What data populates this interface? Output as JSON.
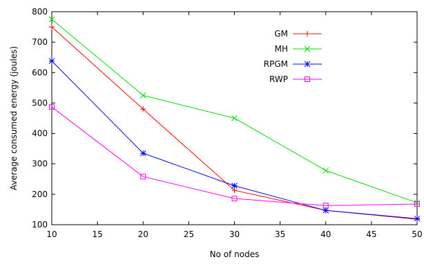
{
  "chart_data": {
    "type": "line",
    "xlabel": "No of nodes",
    "ylabel": "Average consumed energy (joules)",
    "xlim": [
      10,
      50
    ],
    "ylim": [
      100,
      800
    ],
    "xticks": [
      10,
      15,
      20,
      25,
      30,
      35,
      40,
      45,
      50
    ],
    "yticks": [
      100,
      200,
      300,
      400,
      500,
      600,
      700,
      800
    ],
    "grid": false,
    "legend_position": "top-right",
    "x": [
      10,
      20,
      30,
      40,
      50
    ],
    "series": [
      {
        "name": "GM",
        "color": "#ff0000",
        "marker": "plus",
        "values": [
          750,
          480,
          213,
          147,
          118
        ]
      },
      {
        "name": "MH",
        "color": "#00dd00",
        "marker": "cross",
        "values": [
          775,
          525,
          450,
          278,
          172
        ]
      },
      {
        "name": "RPGM",
        "color": "#0000ff",
        "marker": "star",
        "values": [
          638,
          335,
          228,
          147,
          120
        ]
      },
      {
        "name": "RWP",
        "color": "#ff00ff",
        "marker": "square",
        "values": [
          487,
          258,
          186,
          163,
          168
        ]
      }
    ]
  }
}
